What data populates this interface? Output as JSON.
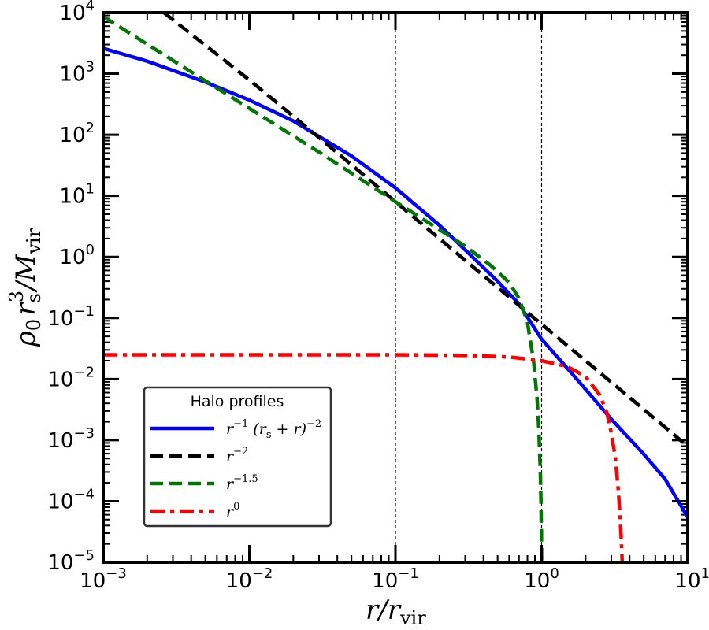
{
  "chart_data": {
    "type": "line",
    "xscale": "log",
    "yscale": "log",
    "xlim": [
      0.001,
      10
    ],
    "ylim": [
      1e-05,
      10000
    ],
    "xlabel": {
      "main": "r/r",
      "sub": "vir"
    },
    "ylabel": {
      "rho": "ρ",
      "rho_sub": "0",
      "r": "r",
      "r_sub": "s",
      "r_sup": "3",
      "slash": "/M",
      "m_sub": "vir"
    },
    "x_ticks": [
      {
        "base": "10",
        "exp": "−3",
        "value": 0.001
      },
      {
        "base": "10",
        "exp": "−2",
        "value": 0.01
      },
      {
        "base": "10",
        "exp": "−1",
        "value": 0.1
      },
      {
        "base": "10",
        "exp": "0",
        "value": 1
      },
      {
        "base": "10",
        "exp": "1",
        "value": 10
      }
    ],
    "y_ticks": [
      {
        "base": "10",
        "exp": "−5",
        "value": 1e-05
      },
      {
        "base": "10",
        "exp": "−4",
        "value": 0.0001
      },
      {
        "base": "10",
        "exp": "−3",
        "value": 0.001
      },
      {
        "base": "10",
        "exp": "−2",
        "value": 0.01
      },
      {
        "base": "10",
        "exp": "−1",
        "value": 0.1
      },
      {
        "base": "10",
        "exp": "0",
        "value": 1
      },
      {
        "base": "10",
        "exp": "1",
        "value": 10
      },
      {
        "base": "10",
        "exp": "2",
        "value": 100
      },
      {
        "base": "10",
        "exp": "3",
        "value": 1000
      },
      {
        "base": "10",
        "exp": "4",
        "value": 10000
      }
    ],
    "vlines": [
      0.1,
      1.0
    ],
    "grid": false,
    "legend": {
      "title": "Halo profiles",
      "position": "lower-left"
    },
    "series": [
      {
        "key": "nfw",
        "label_parts": [
          "r",
          "−1",
          " (r",
          "s",
          " + r)",
          "−2"
        ],
        "color": "#0000ff",
        "dash": "solid",
        "x": [
          0.001,
          0.002,
          0.005,
          0.01,
          0.02,
          0.05,
          0.1,
          0.2,
          0.3,
          0.5,
          0.7,
          1.0,
          1.5,
          2,
          3,
          5,
          7,
          10
        ],
        "y": [
          2600,
          1600,
          730,
          370,
          168,
          45,
          13.5,
          3.3,
          1.3,
          0.4,
          0.17,
          0.045,
          0.015,
          0.0068,
          0.0022,
          0.00059,
          0.00023,
          5.5e-05
        ]
      },
      {
        "key": "isothermal",
        "label_parts": [
          "r",
          "−2"
        ],
        "color": "#000000",
        "dash": "dashed",
        "x": [
          0.0026,
          0.01,
          0.03,
          0.1,
          0.3,
          1.0,
          3,
          10
        ],
        "y": [
          10000,
          790,
          90,
          8.0,
          0.88,
          0.079,
          0.0089,
          0.00079
        ]
      },
      {
        "key": "cusp15",
        "label_parts": [
          "r",
          "−1.5"
        ],
        "color": "#007700",
        "dash": "dashed",
        "x": [
          0.001,
          0.003,
          0.01,
          0.03,
          0.1,
          0.2,
          0.3,
          0.45,
          0.6,
          0.7,
          0.8,
          0.88,
          0.93,
          0.96,
          0.98,
          0.99,
          0.997,
          1.0
        ],
        "y": [
          8600,
          1650,
          270,
          52,
          8.0,
          2.8,
          1.5,
          0.72,
          0.38,
          0.21,
          0.085,
          0.02,
          0.005,
          0.0013,
          0.0003,
          0.0001,
          3e-05,
          1e-05
        ]
      },
      {
        "key": "core",
        "label_parts": [
          "r",
          "0"
        ],
        "color": "#ff0000",
        "dash": "dashdot",
        "x": [
          0.001,
          0.01,
          0.1,
          0.3,
          0.6,
          1.0,
          1.5,
          2.0,
          2.5,
          2.8,
          3.0,
          3.2,
          3.35,
          3.45,
          3.52,
          3.56
        ],
        "y": [
          0.025,
          0.025,
          0.025,
          0.0245,
          0.023,
          0.02,
          0.016,
          0.011,
          0.0055,
          0.0028,
          0.0013,
          0.0005,
          0.00015,
          5e-05,
          2e-05,
          1e-05
        ]
      }
    ]
  }
}
